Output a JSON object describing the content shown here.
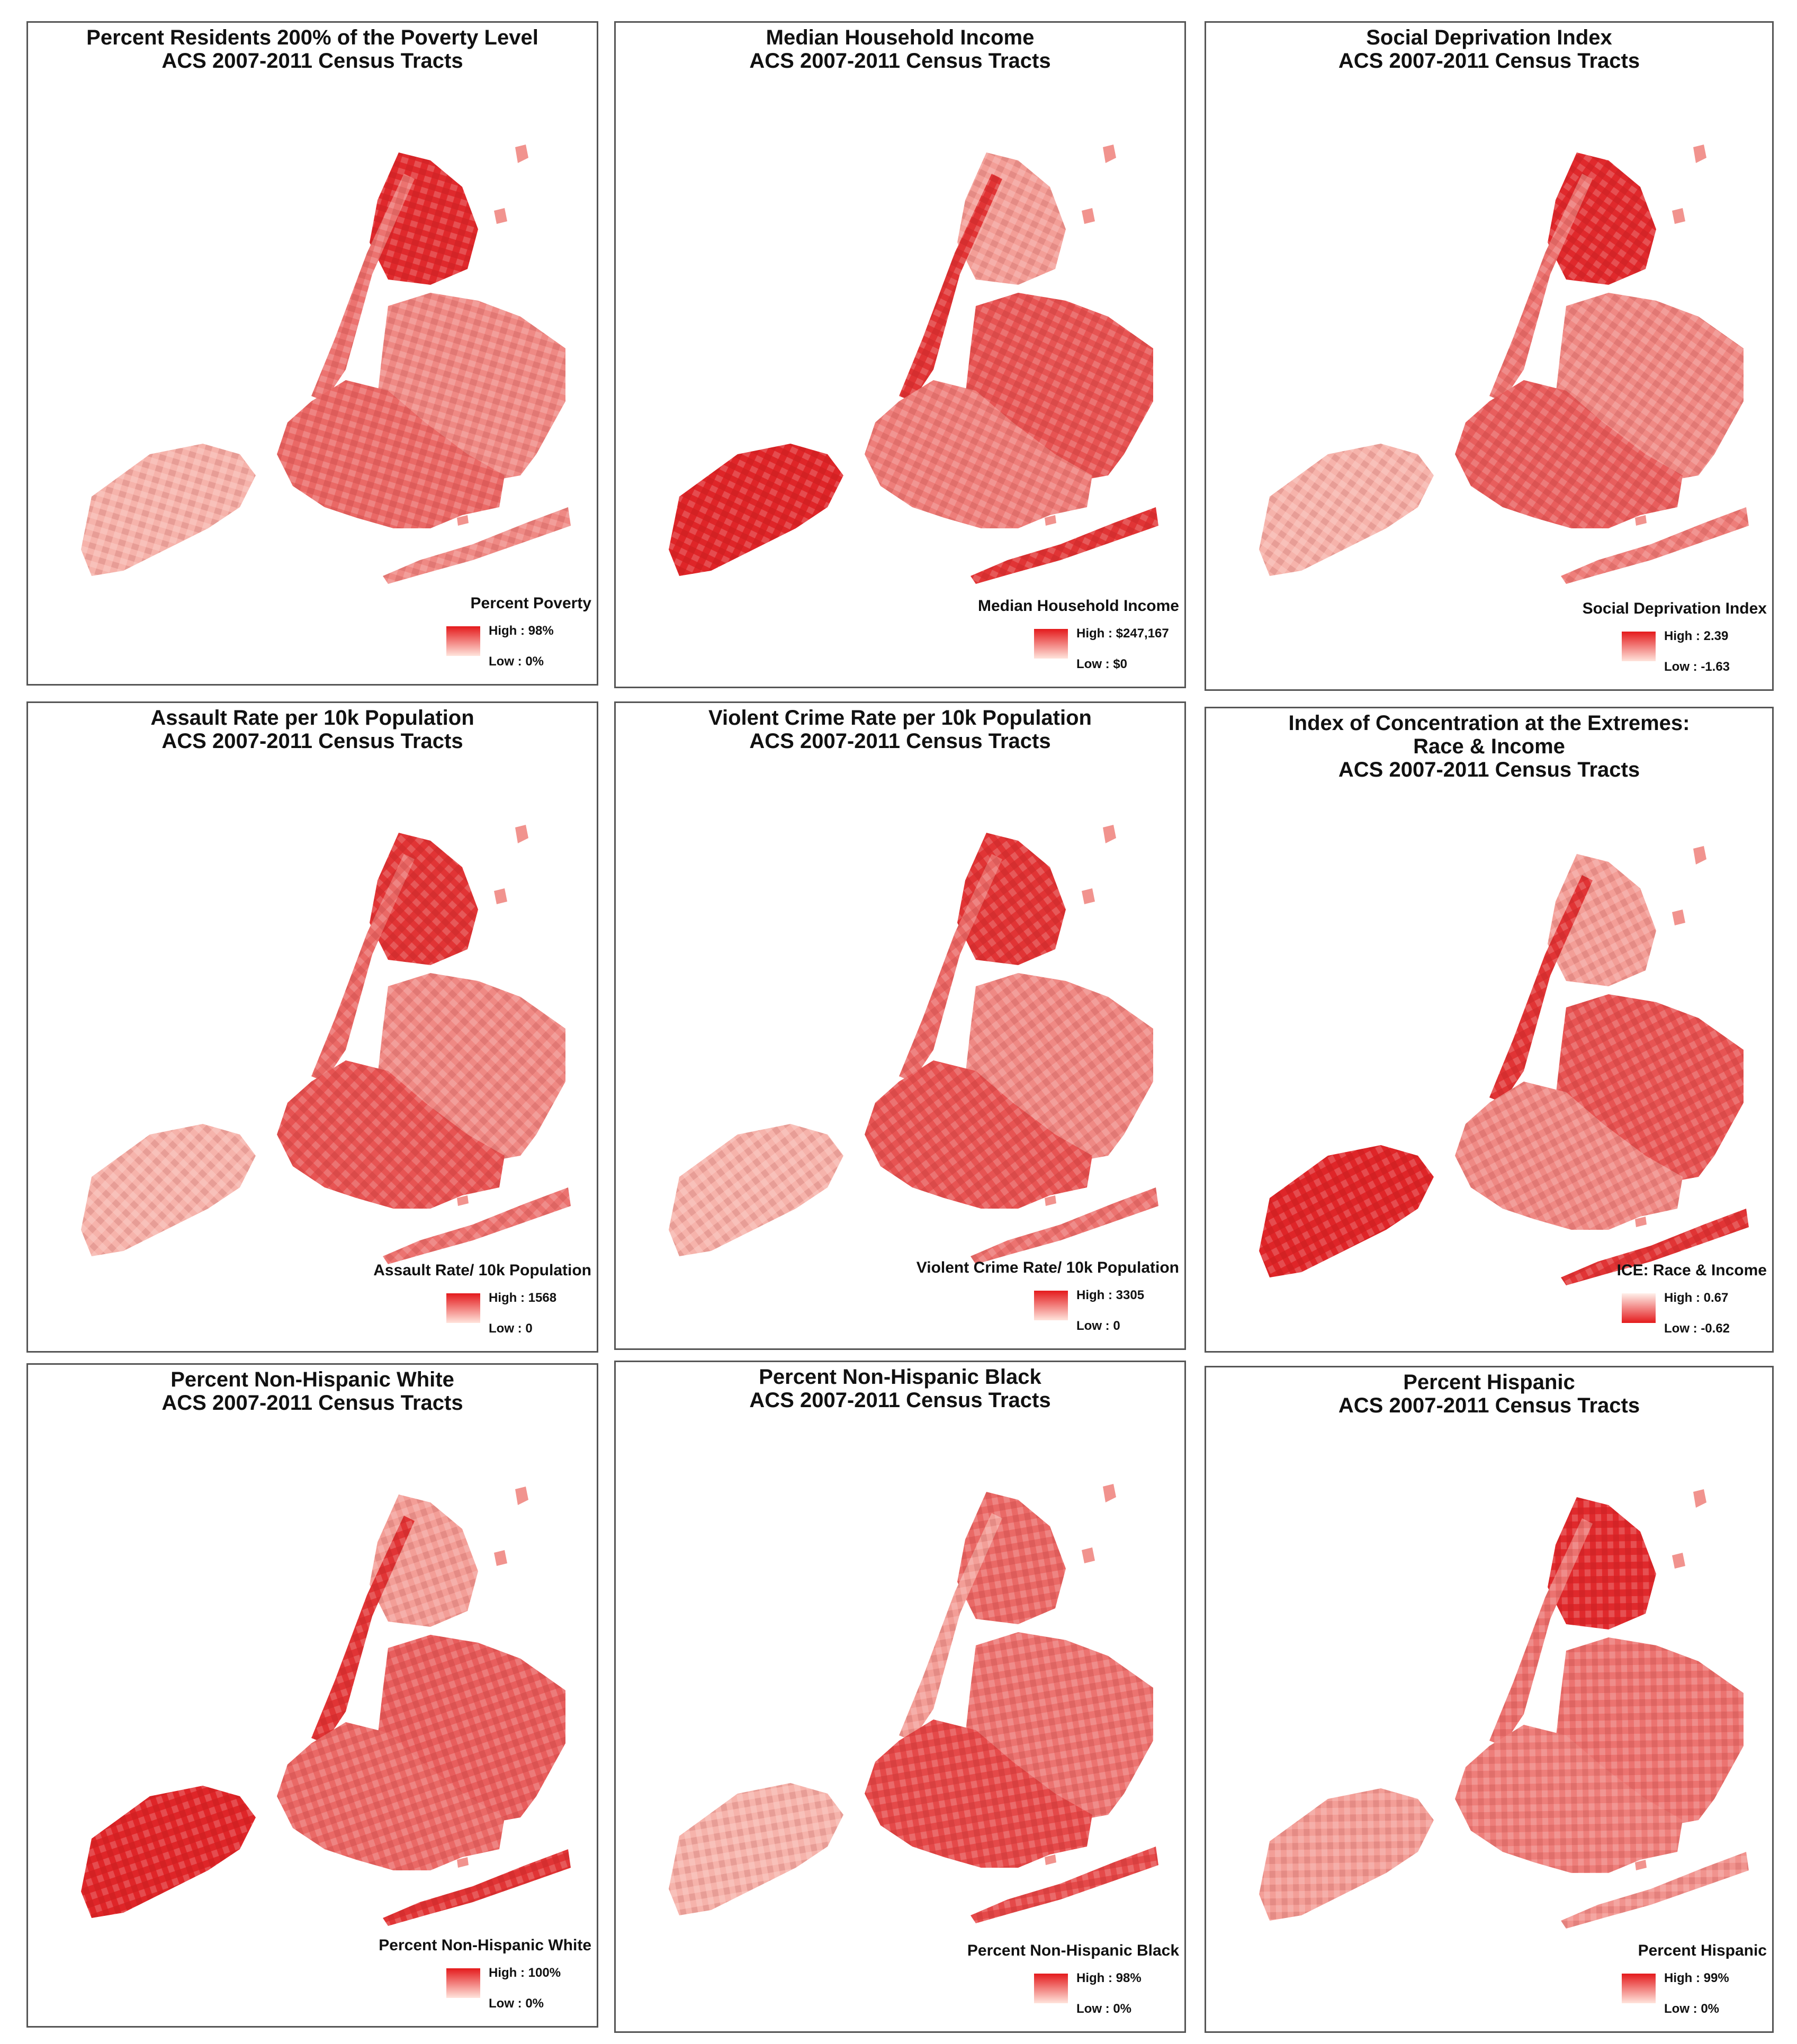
{
  "panels": [
    {
      "title": [
        "Percent Residents 200% of the Poverty Level",
        "ACS 2007-2011 Census Tracts"
      ],
      "legend": {
        "title": "Percent Poverty",
        "high": "High : 98%",
        "low": "Low : 0%",
        "ramp": "normal"
      },
      "shading": {
        "bronx": 0.9,
        "manhattan": 0.55,
        "queens": 0.45,
        "brooklyn": 0.6,
        "staten_island": 0.25,
        "rockaway": 0.45
      }
    },
    {
      "title": [
        "Median Household Income",
        "ACS 2007-2011 Census Tracts"
      ],
      "legend": {
        "title": "Median Household Income",
        "high": "High : $247,167",
        "low": "Low : $0",
        "ramp": "normal"
      },
      "shading": {
        "bronx": 0.35,
        "manhattan": 0.85,
        "queens": 0.7,
        "brooklyn": 0.5,
        "staten_island": 0.92,
        "rockaway": 0.85
      }
    },
    {
      "title": [
        "Social Deprivation Index",
        "ACS 2007-2011 Census Tracts"
      ],
      "legend": {
        "title": "Social Deprivation Index",
        "high": "High : 2.39",
        "low": "Low : -1.63",
        "ramp": "normal"
      },
      "shading": {
        "bronx": 0.9,
        "manhattan": 0.55,
        "queens": 0.45,
        "brooklyn": 0.65,
        "staten_island": 0.25,
        "rockaway": 0.5
      }
    },
    {
      "title": [
        "Assault Rate per 10k Population",
        "ACS 2007-2011 Census Tracts"
      ],
      "legend": {
        "title": "Assault Rate/ 10k Population",
        "high": "High : 1568",
        "low": "Low : 0",
        "ramp": "normal"
      },
      "shading": {
        "bronx": 0.85,
        "manhattan": 0.6,
        "queens": 0.45,
        "brooklyn": 0.7,
        "staten_island": 0.25,
        "rockaway": 0.55
      }
    },
    {
      "title": [
        "Violent Crime Rate per 10k Population",
        "ACS 2007-2011 Census Tracts"
      ],
      "legend": {
        "title": "Violent Crime Rate/ 10k Population",
        "high": "High : 3305",
        "low": "Low : 0",
        "ramp": "normal"
      },
      "shading": {
        "bronx": 0.85,
        "manhattan": 0.6,
        "queens": 0.45,
        "brooklyn": 0.7,
        "staten_island": 0.25,
        "rockaway": 0.55
      }
    },
    {
      "title": [
        "Index of Concentration at the Extremes:",
        "Race & Income",
        "ACS 2007-2011 Census Tracts"
      ],
      "legend": {
        "title": "ICE: Race & Income",
        "high": "High : 0.67",
        "low": "Low : -0.62",
        "ramp": "reversed"
      },
      "shading": {
        "bronx": 0.35,
        "manhattan": 0.85,
        "queens": 0.7,
        "brooklyn": 0.45,
        "staten_island": 0.92,
        "rockaway": 0.85
      }
    },
    {
      "title": [
        "Percent Non-Hispanic White",
        "ACS 2007-2011 Census Tracts"
      ],
      "legend": {
        "title": "Percent Non-Hispanic White",
        "high": "High : 100%",
        "low": "Low : 0%",
        "ramp": "normal"
      },
      "shading": {
        "bronx": 0.35,
        "manhattan": 0.85,
        "queens": 0.65,
        "brooklyn": 0.6,
        "staten_island": 0.92,
        "rockaway": 0.85
      }
    },
    {
      "title": [
        "Percent Non-Hispanic Black",
        "ACS 2007-2011 Census Tracts"
      ],
      "legend": {
        "title": "Percent Non-Hispanic Black",
        "high": "High : 98%",
        "low": "Low : 0%",
        "ramp": "normal"
      },
      "shading": {
        "bronx": 0.6,
        "manhattan": 0.35,
        "queens": 0.55,
        "brooklyn": 0.75,
        "staten_island": 0.25,
        "rockaway": 0.75
      }
    },
    {
      "title": [
        "Percent Hispanic",
        "ACS 2007-2011 Census Tracts"
      ],
      "legend": {
        "title": "Percent Hispanic",
        "high": "High : 99%",
        "low": "Low : 0%",
        "ramp": "normal"
      },
      "shading": {
        "bronx": 0.9,
        "manhattan": 0.55,
        "queens": 0.55,
        "brooklyn": 0.5,
        "staten_island": 0.35,
        "rockaway": 0.4
      }
    }
  ]
}
